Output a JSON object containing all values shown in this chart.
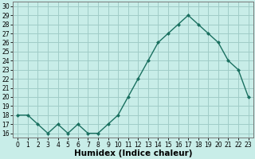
{
  "x": [
    0,
    1,
    2,
    3,
    4,
    5,
    6,
    7,
    8,
    9,
    10,
    11,
    12,
    13,
    14,
    15,
    16,
    17,
    18,
    19,
    20,
    21,
    22,
    23
  ],
  "y": [
    18,
    18,
    17,
    16,
    17,
    16,
    17,
    16,
    16,
    17,
    18,
    20,
    22,
    24,
    26,
    27,
    28,
    29,
    28,
    27,
    26,
    24,
    23,
    20
  ],
  "line_color": "#1a7060",
  "bg_color": "#c8ede8",
  "grid_color": "#a0ccc8",
  "xlabel": "Humidex (Indice chaleur)",
  "ylabel_ticks": [
    16,
    17,
    18,
    19,
    20,
    21,
    22,
    23,
    24,
    25,
    26,
    27,
    28,
    29,
    30
  ],
  "ylim": [
    15.5,
    30.5
  ],
  "xlim": [
    -0.5,
    23.5
  ],
  "xlabel_fontsize": 7.5,
  "tick_fontsize": 5.5,
  "marker": "D",
  "marker_size": 2.0,
  "linewidth": 1.0
}
